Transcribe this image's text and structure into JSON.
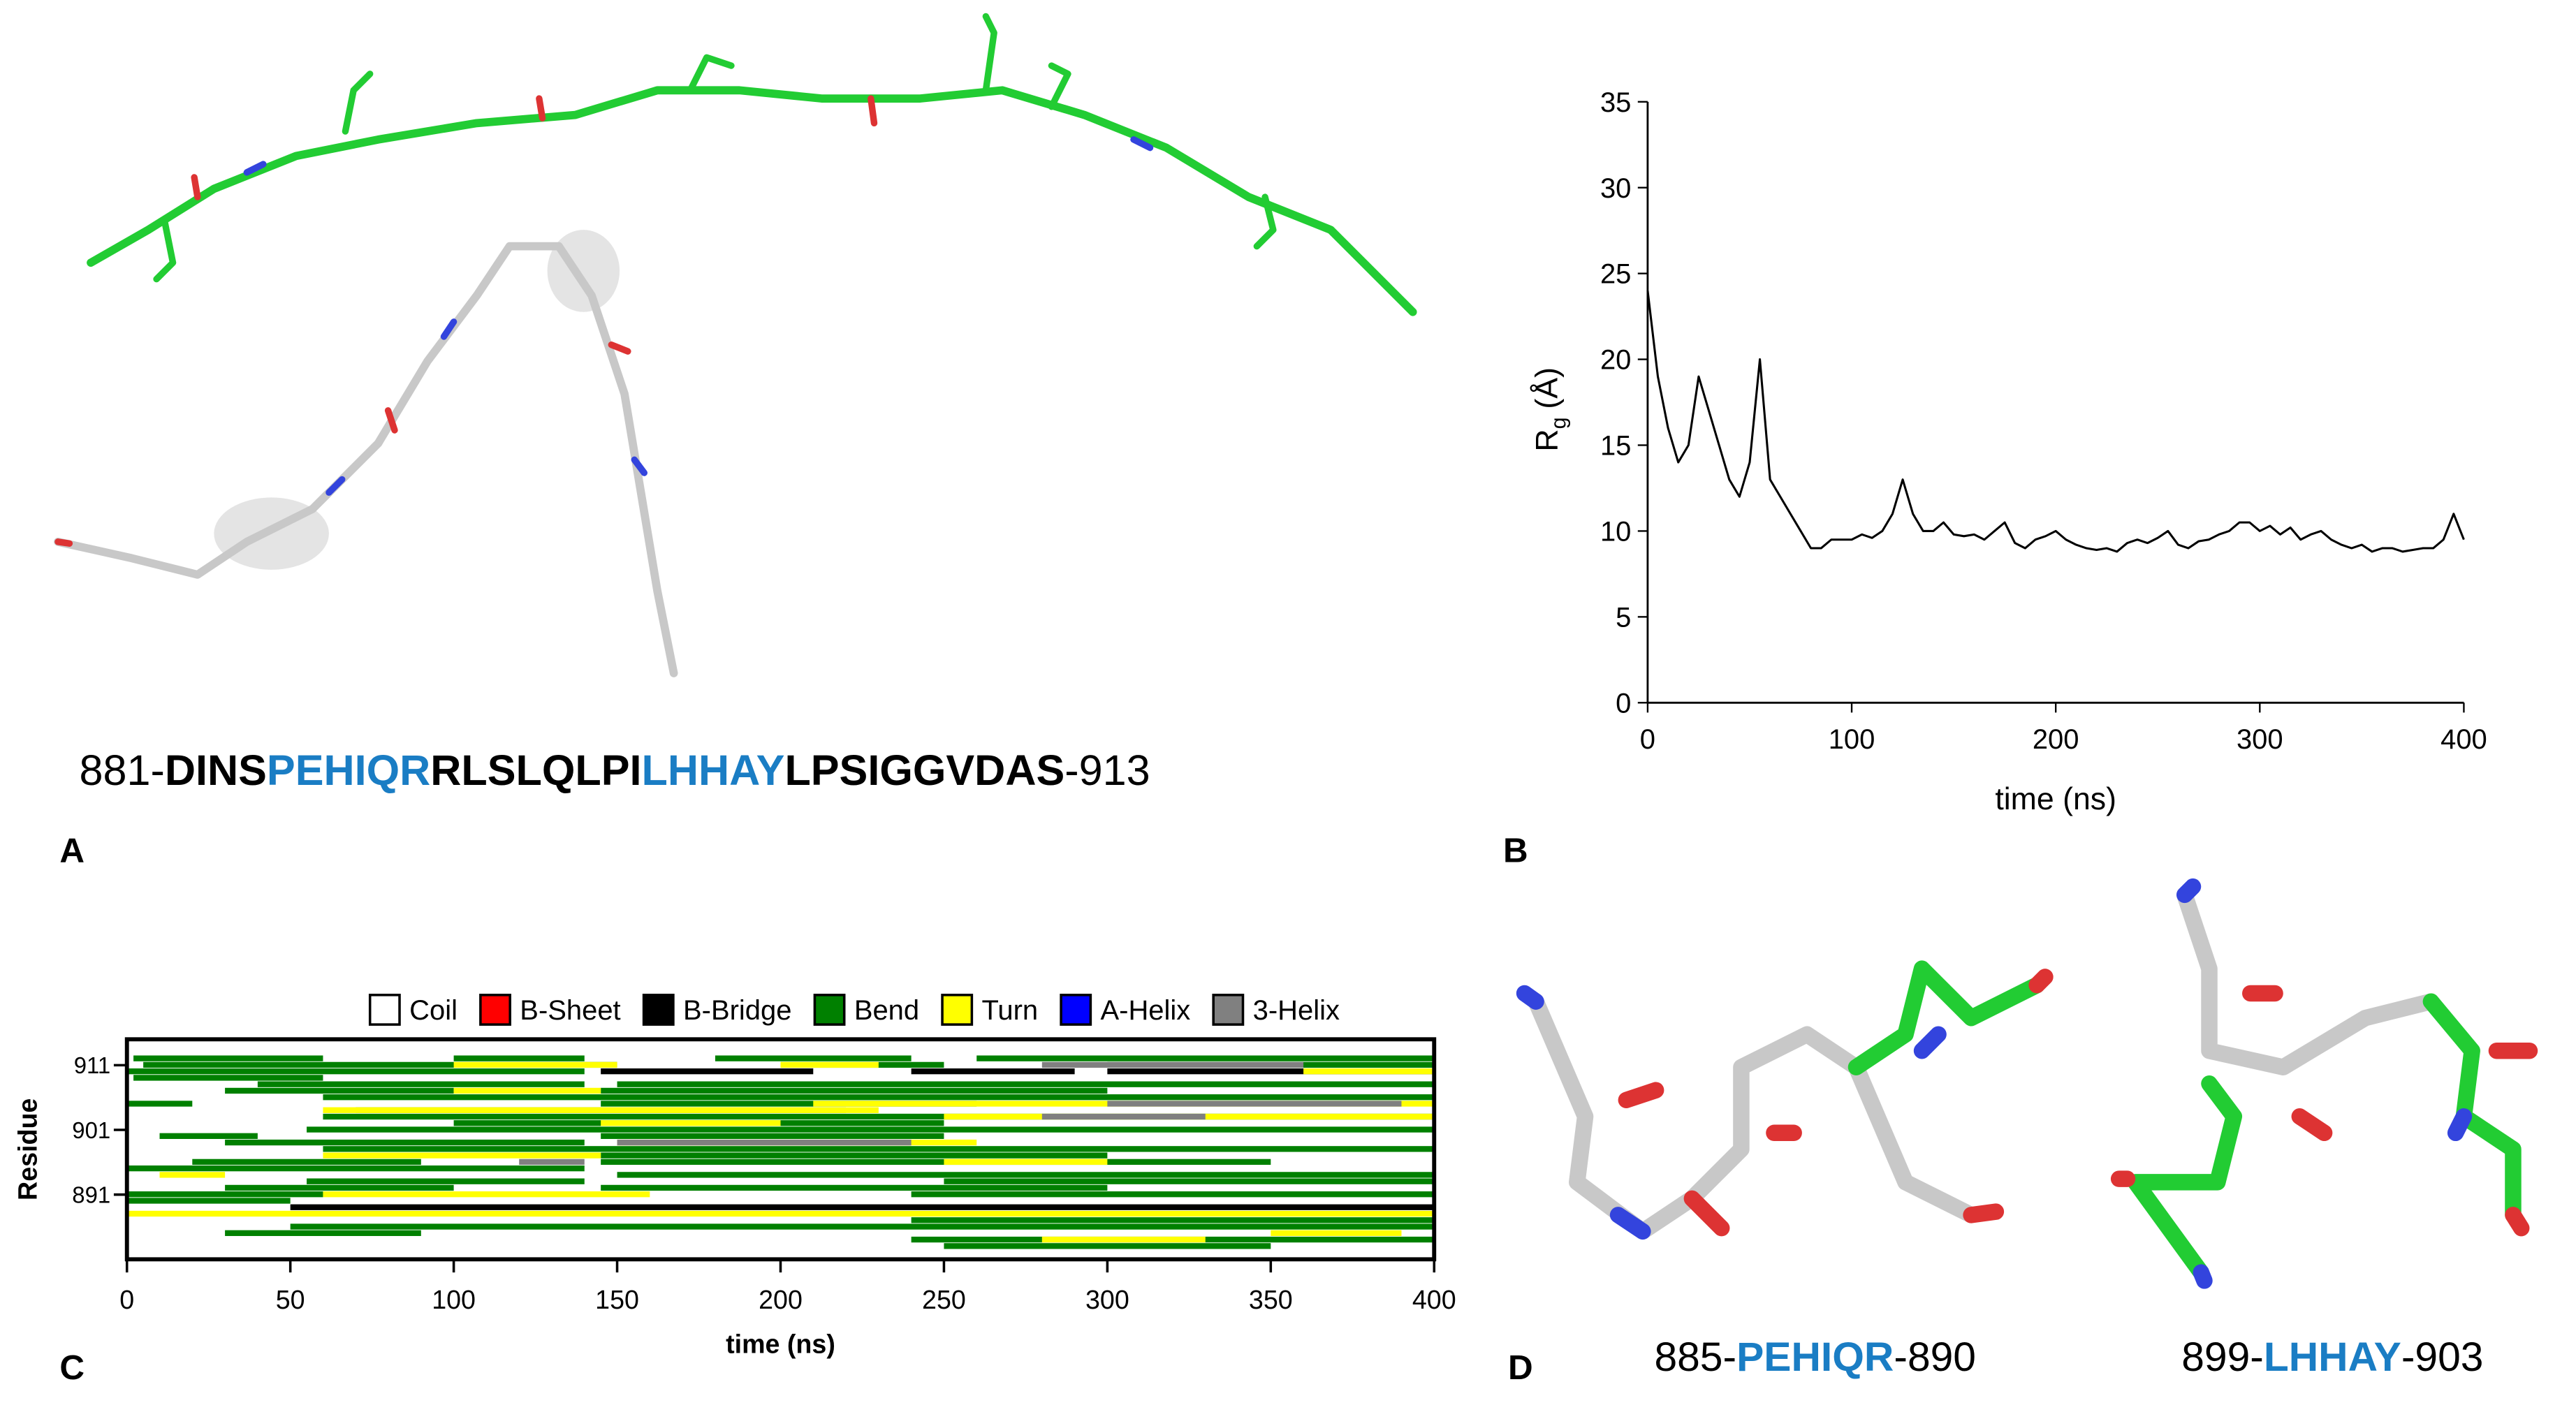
{
  "panels": [
    "A",
    "B",
    "C",
    "D"
  ],
  "sequence": [
    "881-",
    "DINS",
    "PEHIQR",
    "RLSLQLPI",
    "LHHAY",
    "LPSIGGVDAS",
    "-913"
  ],
  "fragments": [
    [
      "885-",
      "PEHIQR",
      "-890"
    ],
    [
      "899-",
      "LHHAY",
      "-903"
    ]
  ],
  "chart_data": [
    {
      "type": "line",
      "xlabel": "time (ns)",
      "ylabel": [
        "R",
        "g",
        "(Å)"
      ],
      "xlim": [
        0,
        400
      ],
      "ylim": [
        0,
        35
      ],
      "xticks": [
        0,
        100,
        200,
        300,
        400
      ],
      "yticks": [
        0,
        5,
        10,
        15,
        20,
        25,
        30,
        35
      ],
      "color": "#000000",
      "x": [
        0,
        5,
        10,
        15,
        20,
        25,
        30,
        35,
        40,
        45,
        50,
        55,
        60,
        65,
        70,
        75,
        80,
        85,
        90,
        95,
        100,
        105,
        110,
        115,
        120,
        125,
        130,
        135,
        140,
        145,
        150,
        155,
        160,
        165,
        170,
        175,
        180,
        185,
        190,
        195,
        200,
        205,
        210,
        215,
        220,
        225,
        230,
        235,
        240,
        245,
        250,
        255,
        260,
        265,
        270,
        275,
        280,
        285,
        290,
        295,
        300,
        305,
        310,
        315,
        320,
        325,
        330,
        335,
        340,
        345,
        350,
        355,
        360,
        365,
        370,
        375,
        380,
        385,
        390,
        395,
        400
      ],
      "values": [
        24,
        19,
        16,
        14,
        15,
        19,
        17,
        15,
        13,
        12,
        14,
        20,
        13,
        12,
        11,
        10,
        9,
        9,
        9.5,
        9.5,
        9.5,
        9.8,
        9.6,
        10,
        11,
        13,
        11,
        10,
        10,
        10.5,
        9.8,
        9.7,
        9.8,
        9.5,
        10,
        10.5,
        9.3,
        9,
        9.5,
        9.7,
        10,
        9.5,
        9.2,
        9,
        8.9,
        9,
        8.8,
        9.3,
        9.5,
        9.3,
        9.6,
        10,
        9.2,
        9,
        9.4,
        9.5,
        9.8,
        10,
        10.5,
        10.5,
        10,
        10.3,
        9.8,
        10.2,
        9.5,
        9.8,
        10,
        9.5,
        9.2,
        9,
        9.2,
        8.8,
        9,
        9,
        8.8,
        8.9,
        9,
        9,
        9.5,
        11,
        9.5
      ]
    },
    {
      "type": "dssp",
      "xlabel": "time (ns)",
      "ylabel": "Residue",
      "xlim": [
        0,
        400
      ],
      "ylim": [
        881,
        915
      ],
      "xticks": [
        0,
        50,
        100,
        150,
        200,
        250,
        300,
        350,
        400
      ],
      "yticks": [
        891,
        901,
        911
      ],
      "series": [
        {
          "name": "Coil",
          "color": "#ffffff"
        },
        {
          "name": "B-Sheet",
          "color": "#ff0000"
        },
        {
          "name": "B-Bridge",
          "color": "#000000",
          "segments": [
            [
              910,
              145,
              210
            ],
            [
              910,
              240,
              290
            ],
            [
              910,
              300,
              400
            ],
            [
              889,
              50,
              400
            ]
          ]
        },
        {
          "name": "Bend",
          "color": "#008000",
          "segments": [
            [
              912,
              2,
              60
            ],
            [
              912,
              100,
              140
            ],
            [
              912,
              180,
              240
            ],
            [
              912,
              260,
              400
            ],
            [
              911,
              5,
              150
            ],
            [
              911,
              200,
              250
            ],
            [
              911,
              300,
              400
            ],
            [
              910,
              0,
              140
            ],
            [
              909,
              2,
              60
            ],
            [
              908,
              40,
              140
            ],
            [
              908,
              150,
              400
            ],
            [
              907,
              30,
              100
            ],
            [
              907,
              145,
              300
            ],
            [
              906,
              60,
              400
            ],
            [
              905,
              0,
              20
            ],
            [
              905,
              145,
              260
            ],
            [
              904,
              70,
              220
            ],
            [
              903,
              60,
              400
            ],
            [
              902,
              100,
              250
            ],
            [
              901,
              55,
              400
            ],
            [
              900,
              10,
              40
            ],
            [
              900,
              145,
              250
            ],
            [
              899,
              30,
              140
            ],
            [
              898,
              60,
              400
            ],
            [
              897,
              145,
              300
            ],
            [
              896,
              20,
              90
            ],
            [
              896,
              145,
              350
            ],
            [
              895,
              0,
              140
            ],
            [
              894,
              150,
              400
            ],
            [
              893,
              55,
              140
            ],
            [
              893,
              250,
              400
            ],
            [
              892,
              30,
              100
            ],
            [
              892,
              145,
              300
            ],
            [
              891,
              0,
              60
            ],
            [
              891,
              240,
              400
            ],
            [
              890,
              0,
              50
            ],
            [
              887,
              240,
              400
            ],
            [
              886,
              50,
              400
            ],
            [
              885,
              30,
              90
            ],
            [
              884,
              240,
              400
            ],
            [
              883,
              250,
              350
            ]
          ]
        },
        {
          "name": "Turn",
          "color": "#ffff00",
          "segments": [
            [
              911,
              100,
              150
            ],
            [
              911,
              200,
              230
            ],
            [
              910,
              360,
              400
            ],
            [
              907,
              100,
              145
            ],
            [
              905,
              210,
              400
            ],
            [
              904,
              60,
              230
            ],
            [
              903,
              250,
              400
            ],
            [
              902,
              145,
              200
            ],
            [
              899,
              150,
              260
            ],
            [
              897,
              60,
              145
            ],
            [
              896,
              250,
              300
            ],
            [
              894,
              10,
              30
            ],
            [
              891,
              60,
              160
            ],
            [
              888,
              0,
              400
            ],
            [
              884,
              280,
              330
            ],
            [
              885,
              350,
              390
            ]
          ]
        },
        {
          "name": "A-Helix",
          "color": "#0000ff"
        },
        {
          "name": "3-Helix",
          "color": "#808080",
          "segments": [
            [
              911,
              280,
              360
            ],
            [
              905,
              300,
              390
            ],
            [
              903,
              280,
              330
            ],
            [
              899,
              150,
              240
            ],
            [
              896,
              120,
              140
            ]
          ]
        }
      ]
    }
  ]
}
